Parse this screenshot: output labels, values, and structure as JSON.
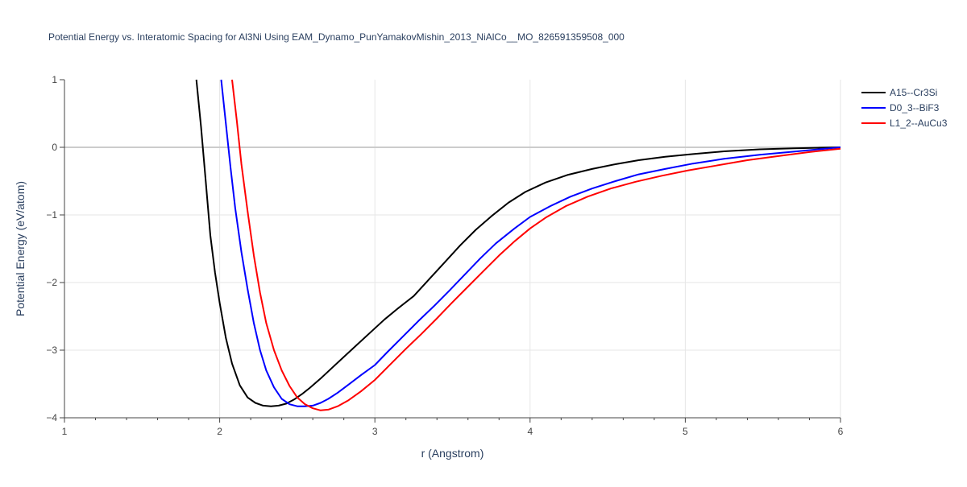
{
  "chart_data": {
    "type": "line",
    "title": "Potential Energy vs. Interatomic Spacing for Al3Ni Using EAM_Dynamo_PunYamakovMishin_2013_NiAlCo__MO_826591359508_000",
    "xlabel": "r (Angstrom)",
    "ylabel": "Potential Energy (eV/atom)",
    "xlim": [
      1,
      6
    ],
    "ylim": [
      -4,
      1
    ],
    "xticks": [
      1,
      2,
      3,
      4,
      5,
      6
    ],
    "xtick_labels": [
      "1",
      "2",
      "3",
      "4",
      "5",
      "6"
    ],
    "yticks": [
      -4,
      -3,
      -2,
      -1,
      0,
      1
    ],
    "ytick_labels": [
      "−4",
      "−3",
      "−2",
      "−1",
      "0",
      "1"
    ],
    "grid": true,
    "legend": "top-right",
    "series": [
      {
        "name": "A15--Cr3Si",
        "color": "#000000",
        "x": [
          1.85,
          1.88,
          1.91,
          1.94,
          1.97,
          2.0,
          2.04,
          2.08,
          2.13,
          2.18,
          2.23,
          2.28,
          2.33,
          2.38,
          2.43,
          2.48,
          2.53,
          2.58,
          2.65,
          2.72,
          2.8,
          2.88,
          2.97,
          3.06,
          3.15,
          3.25,
          3.35,
          3.45,
          3.55,
          3.65,
          3.75,
          3.86,
          3.97,
          4.1,
          4.24,
          4.4,
          4.55,
          4.7,
          4.87,
          5.05,
          5.25,
          5.48,
          5.7,
          5.85,
          6.0
        ],
        "y": [
          1.0,
          0.3,
          -0.5,
          -1.3,
          -1.85,
          -2.3,
          -2.82,
          -3.2,
          -3.52,
          -3.7,
          -3.78,
          -3.82,
          -3.83,
          -3.82,
          -3.79,
          -3.73,
          -3.65,
          -3.56,
          -3.42,
          -3.27,
          -3.1,
          -2.93,
          -2.74,
          -2.55,
          -2.38,
          -2.2,
          -1.95,
          -1.7,
          -1.45,
          -1.22,
          -1.02,
          -0.82,
          -0.66,
          -0.52,
          -0.41,
          -0.32,
          -0.25,
          -0.19,
          -0.14,
          -0.1,
          -0.06,
          -0.03,
          -0.015,
          -0.007,
          0.0
        ]
      },
      {
        "name": "D0_3--BiF3",
        "color": "#0000ff",
        "x": [
          2.01,
          2.04,
          2.07,
          2.1,
          2.14,
          2.18,
          2.22,
          2.26,
          2.3,
          2.35,
          2.4,
          2.45,
          2.5,
          2.55,
          2.6,
          2.65,
          2.7,
          2.76,
          2.83,
          2.91,
          3.0,
          3.08,
          3.18,
          3.28,
          3.38,
          3.48,
          3.58,
          3.68,
          3.78,
          3.9,
          4.0,
          4.13,
          4.26,
          4.4,
          4.55,
          4.7,
          4.87,
          5.05,
          5.25,
          5.48,
          5.72,
          6.0
        ],
        "y": [
          1.0,
          0.35,
          -0.3,
          -0.9,
          -1.55,
          -2.1,
          -2.6,
          -3.0,
          -3.3,
          -3.55,
          -3.72,
          -3.8,
          -3.83,
          -3.83,
          -3.82,
          -3.78,
          -3.72,
          -3.63,
          -3.51,
          -3.37,
          -3.22,
          -3.03,
          -2.8,
          -2.57,
          -2.35,
          -2.12,
          -1.88,
          -1.64,
          -1.42,
          -1.2,
          -1.03,
          -0.87,
          -0.73,
          -0.61,
          -0.5,
          -0.4,
          -0.32,
          -0.24,
          -0.17,
          -0.11,
          -0.06,
          0.0
        ]
      },
      {
        "name": "L1_2--AuCu3",
        "color": "#ff0000",
        "x": [
          2.08,
          2.11,
          2.14,
          2.18,
          2.22,
          2.26,
          2.3,
          2.35,
          2.4,
          2.45,
          2.5,
          2.55,
          2.6,
          2.65,
          2.7,
          2.76,
          2.83,
          2.91,
          3.0,
          3.1,
          3.2,
          3.3,
          3.4,
          3.5,
          3.6,
          3.7,
          3.8,
          3.9,
          4.0,
          4.1,
          4.23,
          4.37,
          4.52,
          4.68,
          4.85,
          5.02,
          5.2,
          5.4,
          5.6,
          5.8,
          6.0
        ],
        "y": [
          1.0,
          0.4,
          -0.25,
          -0.95,
          -1.6,
          -2.15,
          -2.6,
          -3.0,
          -3.3,
          -3.53,
          -3.7,
          -3.8,
          -3.86,
          -3.89,
          -3.88,
          -3.83,
          -3.74,
          -3.61,
          -3.44,
          -3.21,
          -2.98,
          -2.76,
          -2.53,
          -2.29,
          -2.06,
          -1.83,
          -1.6,
          -1.39,
          -1.2,
          -1.04,
          -0.87,
          -0.73,
          -0.61,
          -0.51,
          -0.42,
          -0.34,
          -0.27,
          -0.19,
          -0.13,
          -0.07,
          -0.02
        ]
      }
    ]
  }
}
